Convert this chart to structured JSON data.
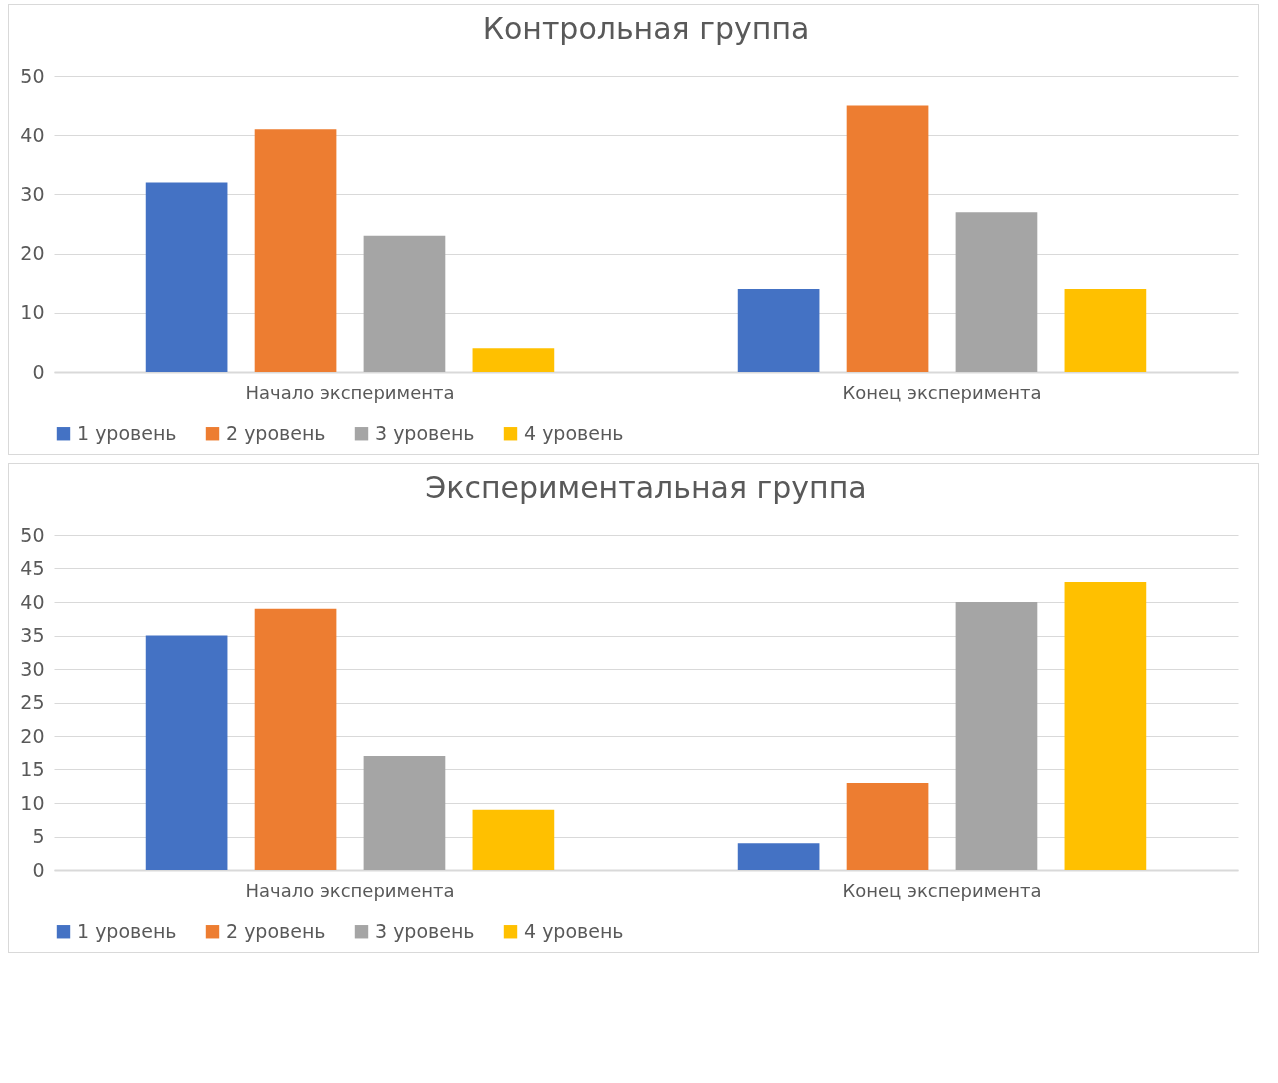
{
  "chart_data": [
    {
      "type": "bar",
      "title": "Контрольная группа",
      "categories": [
        "Начало эксперимента",
        "Конец эксперимента"
      ],
      "series": [
        {
          "name": "1 уровень",
          "color": "#4472c4",
          "values": [
            32,
            14
          ]
        },
        {
          "name": "2 уровень",
          "color": "#ed7d31",
          "values": [
            41,
            45
          ]
        },
        {
          "name": "3 уровень",
          "color": "#a5a5a5",
          "values": [
            23,
            27
          ]
        },
        {
          "name": "4 уровень",
          "color": "#ffc000",
          "values": [
            4,
            14
          ]
        }
      ],
      "ylim": [
        0,
        50
      ],
      "yticks": [
        0,
        10,
        20,
        30,
        40,
        50
      ],
      "grid": "y",
      "legend": "bottom"
    },
    {
      "type": "bar",
      "title": "Экспериментальная группа",
      "categories": [
        "Начало эксперимента",
        "Конец эксперимента"
      ],
      "series": [
        {
          "name": "1 уровень",
          "color": "#4472c4",
          "values": [
            35,
            4
          ]
        },
        {
          "name": "2 уровень",
          "color": "#ed7d31",
          "values": [
            39,
            13
          ]
        },
        {
          "name": "3 уровень",
          "color": "#a5a5a5",
          "values": [
            17,
            40
          ]
        },
        {
          "name": "4 уровень",
          "color": "#ffc000",
          "values": [
            9,
            43
          ]
        }
      ],
      "ylim": [
        0,
        50
      ],
      "yticks": [
        0,
        5,
        10,
        15,
        20,
        25,
        30,
        35,
        40,
        45,
        50
      ],
      "grid": "y",
      "legend": "bottom"
    }
  ]
}
